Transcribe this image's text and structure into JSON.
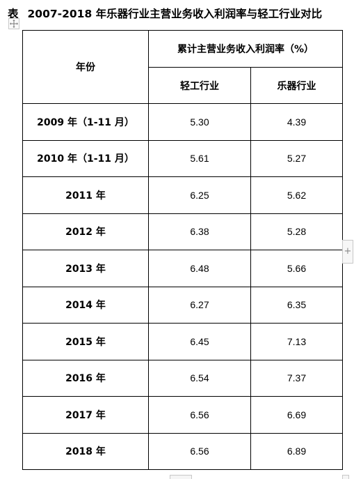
{
  "title": {
    "label": "表",
    "text": "2007-2018 年乐器行业主营业务收入利润率与轻工行业对比"
  },
  "table": {
    "header": {
      "year": "年份",
      "group": "累计主营业务收入利润率（%）",
      "col1": "轻工行业",
      "col2": "乐器行业"
    },
    "rows": [
      {
        "year": "2009 年（1-11 月）",
        "light": "5.30",
        "music": "4.39"
      },
      {
        "year": "2010 年（1-11 月）",
        "light": "5.61",
        "music": "5.27"
      },
      {
        "year": "2011 年",
        "light": "6.25",
        "music": "5.62"
      },
      {
        "year": "2012 年",
        "light": "6.38",
        "music": "5.28"
      },
      {
        "year": "2013 年",
        "light": "6.48",
        "music": "5.66"
      },
      {
        "year": "2014 年",
        "light": "6.27",
        "music": "6.35"
      },
      {
        "year": "2015 年",
        "light": "6.45",
        "music": "7.13"
      },
      {
        "year": "2016 年",
        "light": "6.54",
        "music": "7.37"
      },
      {
        "year": "2017 年",
        "light": "6.56",
        "music": "6.69"
      },
      {
        "year": "2018 年",
        "light": "6.56",
        "music": "6.89"
      }
    ]
  },
  "controls": {
    "move_icon": "move-icon",
    "add_column": "+"
  }
}
